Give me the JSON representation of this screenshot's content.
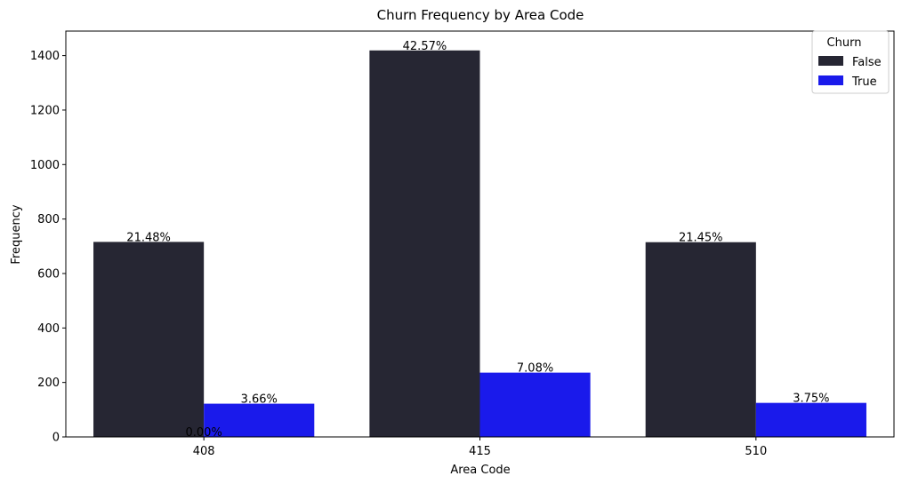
{
  "chart_data": {
    "type": "bar",
    "title": "Churn Frequency by Area Code",
    "xlabel": "Area Code",
    "ylabel": "Frequency",
    "categories": [
      "408",
      "415",
      "510"
    ],
    "ylim": [
      0,
      1490
    ],
    "yticks": [
      0,
      200,
      400,
      600,
      800,
      1000,
      1200,
      1400
    ],
    "grid": false,
    "legend": {
      "title": "Churn",
      "placement": "top-right"
    },
    "series": [
      {
        "name": "False",
        "color": "#262633",
        "values": [
          716,
          1419,
          715
        ],
        "labels": [
          "21.48%",
          "42.57%",
          "21.45%"
        ]
      },
      {
        "name": "True",
        "color": "#1a1aeb",
        "values": [
          122,
          236,
          125
        ],
        "labels": [
          "3.66%",
          "7.08%",
          "3.75%"
        ]
      }
    ],
    "annotations": [
      {
        "text": "0.00%",
        "category": "408",
        "y": 0
      }
    ]
  }
}
